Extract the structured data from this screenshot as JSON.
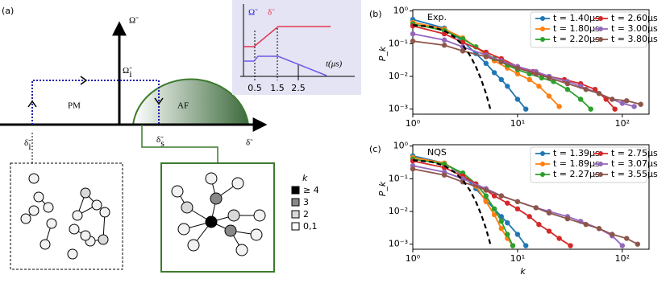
{
  "panel_a": {
    "label": "(a)",
    "omega_axis": "Ω̃",
    "omega_i": {
      "symbol": "Ω̃",
      "sub": "i"
    },
    "delta_axis": "δ̃",
    "delta_i": {
      "symbol": "δ̃",
      "sub": "i"
    },
    "delta_s": {
      "symbol": "δ̃",
      "sub": "s"
    },
    "pm": "PM",
    "af": "AF",
    "inset": {
      "omega": "Ω̃",
      "delta": "δ̃",
      "t_label": "t(μs)",
      "ticks": [
        "0.5",
        "1.5",
        "2.5"
      ]
    },
    "k_legend": {
      "title": "k",
      "items": [
        "≥ 4",
        "3",
        "2",
        "0,1"
      ]
    }
  },
  "chart_data": [
    {
      "type": "line",
      "panel": "(b)",
      "label": "Exp.",
      "xlabel": "",
      "ylabel": "P_k",
      "log_x": true,
      "log_y": true,
      "xlim": [
        1,
        180
      ],
      "ylim": [
        0.0007,
        1.1
      ],
      "xticks": [
        {
          "value": 1,
          "label": "10⁰"
        },
        {
          "value": 10,
          "label": "10¹"
        },
        {
          "value": 100,
          "label": "10²"
        }
      ],
      "yticks": [
        {
          "value": 0.001,
          "label": "10⁻³"
        },
        {
          "value": 0.01,
          "label": "10⁻²"
        },
        {
          "value": 0.1,
          "label": "10⁻¹"
        },
        {
          "value": 1,
          "label": "10⁰"
        }
      ],
      "legend": "upper right",
      "series": [
        {
          "name": "t = 1.40μs",
          "color": "#1f77b4",
          "x": [
            1,
            2,
            3,
            4,
            5,
            6,
            7,
            8,
            10,
            12
          ],
          "values": [
            0.55,
            0.3,
            0.12,
            0.05,
            0.025,
            0.013,
            0.008,
            0.005,
            0.002,
            0.001
          ]
        },
        {
          "name": "t = 1.80μs",
          "color": "#ff7f0e",
          "x": [
            1,
            2,
            3,
            4,
            5,
            6,
            8,
            10,
            13,
            16,
            20,
            25
          ],
          "values": [
            0.45,
            0.28,
            0.15,
            0.08,
            0.045,
            0.03,
            0.018,
            0.012,
            0.008,
            0.005,
            0.0025,
            0.0012
          ]
        },
        {
          "name": "t = 2.20μs",
          "color": "#2ca02c",
          "x": [
            1,
            2,
            3,
            4,
            5,
            6,
            8,
            10,
            13,
            17,
            22,
            30,
            40,
            50
          ],
          "values": [
            0.4,
            0.25,
            0.14,
            0.08,
            0.05,
            0.035,
            0.022,
            0.016,
            0.012,
            0.009,
            0.007,
            0.004,
            0.002,
            0.001
          ]
        },
        {
          "name": "t = 2.60μs",
          "color": "#d62728",
          "x": [
            1,
            2,
            3,
            5,
            7,
            10,
            14,
            20,
            28,
            40,
            55,
            70,
            85
          ],
          "values": [
            0.35,
            0.2,
            0.11,
            0.055,
            0.035,
            0.02,
            0.014,
            0.01,
            0.008,
            0.006,
            0.004,
            0.002,
            0.001
          ]
        },
        {
          "name": "t = 3.00μs",
          "color": "#9467bd",
          "x": [
            1,
            2,
            3,
            5,
            7,
            10,
            15,
            20,
            30,
            40,
            60,
            80,
            100,
            130
          ],
          "values": [
            0.2,
            0.13,
            0.08,
            0.045,
            0.03,
            0.02,
            0.014,
            0.01,
            0.007,
            0.005,
            0.003,
            0.002,
            0.0015,
            0.0012
          ]
        },
        {
          "name": "t = 3.80μs",
          "color": "#8c564b",
          "x": [
            1,
            2,
            3,
            5,
            7,
            10,
            15,
            20,
            30,
            45,
            60,
            80,
            110,
            150
          ],
          "values": [
            0.12,
            0.09,
            0.06,
            0.04,
            0.028,
            0.018,
            0.012,
            0.009,
            0.006,
            0.004,
            0.003,
            0.002,
            0.0018,
            0.0014
          ]
        }
      ],
      "reference": {
        "color": "#000000",
        "x": [
          1,
          1.5,
          2,
          2.5,
          3,
          3.5,
          4,
          4.5,
          5,
          5.5
        ],
        "values": [
          0.37,
          0.33,
          0.25,
          0.16,
          0.09,
          0.045,
          0.02,
          0.008,
          0.003,
          0.001
        ]
      }
    },
    {
      "type": "line",
      "panel": "(c)",
      "label": "NQS",
      "xlabel": "k",
      "ylabel": "P_k",
      "log_x": true,
      "log_y": true,
      "xlim": [
        1,
        180
      ],
      "ylim": [
        0.0007,
        1.1
      ],
      "xticks": [
        {
          "value": 1,
          "label": "10⁰"
        },
        {
          "value": 10,
          "label": "10¹"
        },
        {
          "value": 100,
          "label": "10²"
        }
      ],
      "yticks": [
        {
          "value": 0.001,
          "label": "10⁻³"
        },
        {
          "value": 0.01,
          "label": "10⁻²"
        },
        {
          "value": 0.1,
          "label": "10⁻¹"
        },
        {
          "value": 1,
          "label": "10⁰"
        }
      ],
      "legend": "upper right",
      "series": [
        {
          "name": "t = 1.39μs",
          "color": "#1f77b4",
          "x": [
            1,
            2,
            3,
            4,
            5,
            6,
            7,
            8,
            10,
            12
          ],
          "values": [
            0.5,
            0.3,
            0.13,
            0.05,
            0.022,
            0.012,
            0.007,
            0.0045,
            0.002,
            0.0009
          ]
        },
        {
          "name": "t = 1.89μs",
          "color": "#ff7f0e",
          "x": [
            1,
            2,
            3,
            4,
            5,
            6,
            7,
            8,
            9
          ],
          "values": [
            0.45,
            0.3,
            0.14,
            0.06,
            0.02,
            0.008,
            0.003,
            0.0015,
            0.0009
          ]
        },
        {
          "name": "t = 2.27μs",
          "color": "#2ca02c",
          "x": [
            1,
            2,
            3,
            4,
            5,
            6,
            7,
            8,
            9
          ],
          "values": [
            0.4,
            0.28,
            0.15,
            0.07,
            0.03,
            0.012,
            0.005,
            0.002,
            0.0009
          ]
        },
        {
          "name": "t = 2.75μs",
          "color": "#d62728",
          "x": [
            1,
            2,
            3,
            4,
            5,
            6,
            8,
            10,
            13,
            16,
            20,
            25,
            32
          ],
          "values": [
            0.35,
            0.22,
            0.12,
            0.07,
            0.045,
            0.03,
            0.018,
            0.012,
            0.007,
            0.004,
            0.0025,
            0.0015,
            0.0009
          ]
        },
        {
          "name": "t = 3.07μs",
          "color": "#9467bd",
          "x": [
            1,
            2,
            3,
            5,
            7,
            10,
            15,
            20,
            30,
            40,
            60,
            80,
            100
          ],
          "values": [
            0.25,
            0.16,
            0.1,
            0.05,
            0.03,
            0.02,
            0.013,
            0.01,
            0.007,
            0.005,
            0.003,
            0.0018,
            0.0009
          ]
        },
        {
          "name": "t = 3.55μs",
          "color": "#8c564b",
          "x": [
            1,
            2,
            3,
            5,
            7,
            10,
            15,
            20,
            30,
            45,
            60,
            80,
            110,
            140
          ],
          "values": [
            0.2,
            0.13,
            0.08,
            0.045,
            0.03,
            0.02,
            0.013,
            0.009,
            0.006,
            0.004,
            0.003,
            0.002,
            0.0015,
            0.001
          ]
        }
      ],
      "reference": {
        "color": "#000000",
        "x": [
          1,
          1.5,
          2,
          2.5,
          3,
          3.5,
          4,
          4.5,
          5,
          5.5
        ],
        "values": [
          0.37,
          0.33,
          0.25,
          0.16,
          0.09,
          0.045,
          0.02,
          0.008,
          0.003,
          0.001
        ]
      }
    }
  ]
}
